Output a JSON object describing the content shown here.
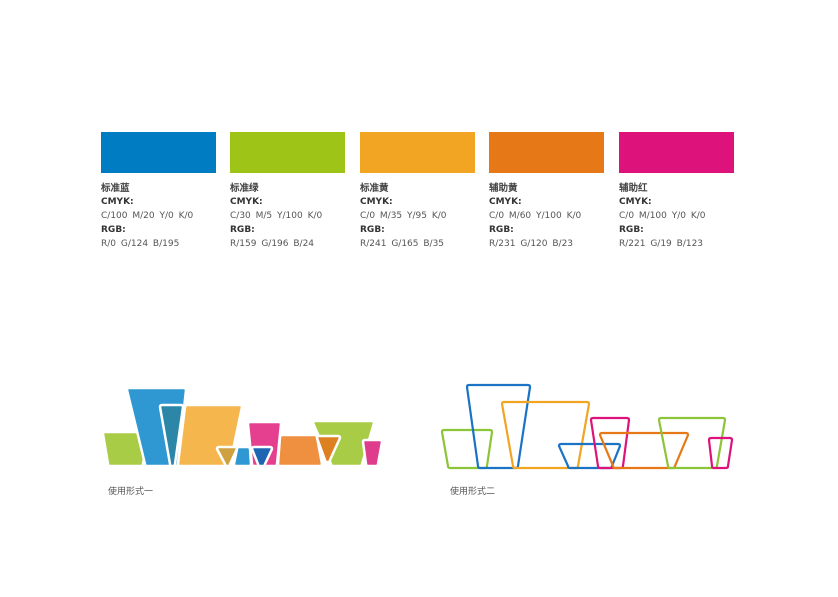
{
  "swatches": [
    {
      "name": "标准蓝",
      "cmyk_label": "CMYK:",
      "cmyk": "C/100  M/20  Y/0  K/0",
      "rgb_label": "RGB:",
      "rgb": "R/0  G/124  B/195",
      "color": "#007CC3"
    },
    {
      "name": "标准绿",
      "cmyk_label": "CMYK:",
      "cmyk": "C/30  M/5  Y/100  K/0",
      "rgb_label": "RGB:",
      "rgb": "R/159  G/196  B/24",
      "color": "#9FC418"
    },
    {
      "name": "标准黄",
      "cmyk_label": "CMYK:",
      "cmyk": "C/0  M/35  Y/95  K/0",
      "rgb_label": "RGB:",
      "rgb": "R/241  G/165  B/35",
      "color": "#F1A523"
    },
    {
      "name": "辅助黄",
      "cmyk_label": "CMYK:",
      "cmyk": "C/0  M/60  Y/100  K/0",
      "rgb_label": "RGB:",
      "rgb": "R/231  G/120  B/23",
      "color": "#E77817"
    },
    {
      "name": "辅助红",
      "cmyk_label": "CMYK:",
      "cmyk": "C/0  M/100  Y/0  K/0",
      "rgb_label": "RGB:",
      "rgb": "R/221  G/19  B/123",
      "color": "#DD137B"
    }
  ],
  "forms": {
    "form1_caption": "使用形式一",
    "form2_caption": "使用形式二"
  }
}
